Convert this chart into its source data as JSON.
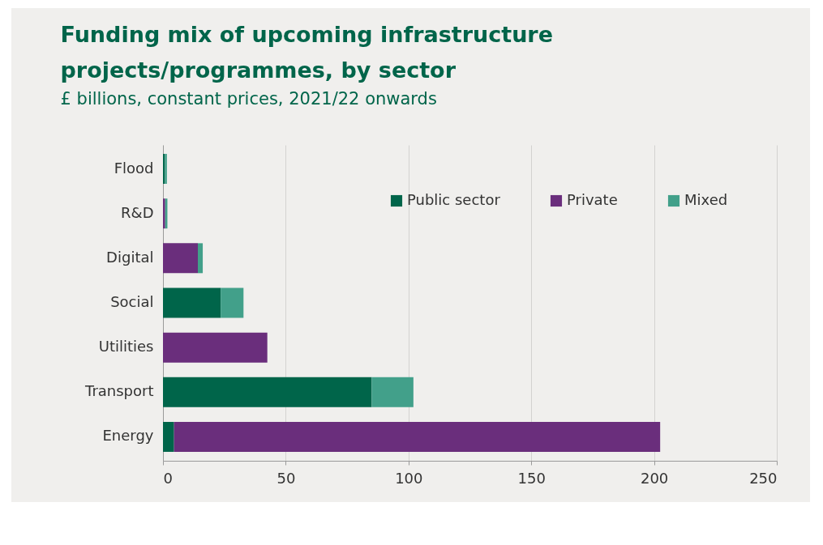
{
  "chart_data": {
    "type": "bar",
    "orientation": "horizontal",
    "stacked": true,
    "title": "Funding mix of upcoming infrastructure projects/programmes, by sector",
    "subtitle": "£ billions, constant prices, 2021/22 onwards",
    "categories": [
      "Flood",
      "R&D",
      "Digital",
      "Social",
      "Utilities",
      "Transport",
      "Energy"
    ],
    "series": [
      {
        "name": "Public sector",
        "color": "#00654a",
        "values": [
          0.8,
          null,
          null,
          23.5,
          null,
          85,
          4.5
        ]
      },
      {
        "name": "Private",
        "color": "#6a2e7c",
        "values": [
          null,
          0.9,
          14.2,
          null,
          42.5,
          null,
          198
        ]
      },
      {
        "name": "Mixed",
        "color": "#42a08a",
        "values": [
          0.8,
          0.9,
          2,
          9.3,
          null,
          17,
          null
        ]
      }
    ],
    "xlim": [
      0,
      250
    ],
    "xticks": [
      0,
      50,
      100,
      150,
      200,
      250
    ],
    "grid": "x",
    "legend": "top right"
  }
}
